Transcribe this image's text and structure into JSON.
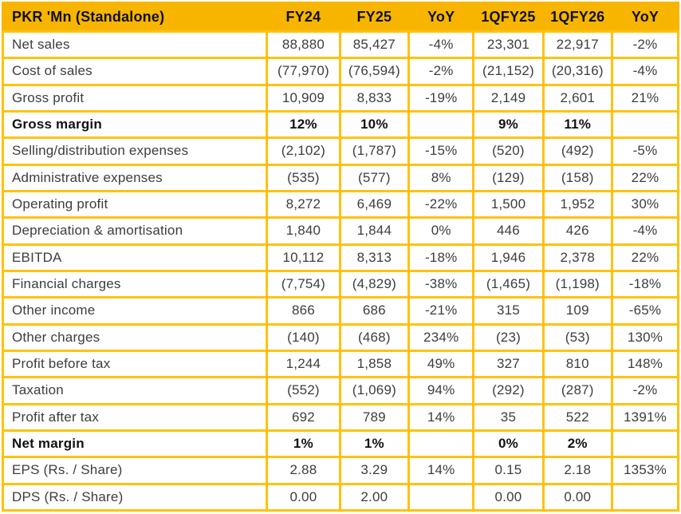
{
  "colors": {
    "header_bg": "#F8B500",
    "border": "#FFC20E",
    "text": "#3D3D3D",
    "header_text": "#101010"
  },
  "table": {
    "title": "PKR 'Mn (Standalone)",
    "columns": [
      "PKR 'Mn (Standalone)",
      "FY24",
      "FY25",
      "YoY",
      "1QFY25",
      "1QFY26",
      "YoY"
    ],
    "rows": [
      {
        "label": "Net sales",
        "bold": false,
        "values": [
          "88,880",
          "85,427",
          "-4%",
          "23,301",
          "22,917",
          "-2%"
        ]
      },
      {
        "label": "Cost of sales",
        "bold": false,
        "values": [
          "(77,970)",
          "(76,594)",
          "-2%",
          "(21,152)",
          "(20,316)",
          "-4%"
        ]
      },
      {
        "label": "Gross profit",
        "bold": false,
        "values": [
          "10,909",
          "8,833",
          "-19%",
          "2,149",
          "2,601",
          "21%"
        ]
      },
      {
        "label": "Gross margin",
        "bold": true,
        "values": [
          "12%",
          "10%",
          "",
          "9%",
          "11%",
          ""
        ]
      },
      {
        "label": "Selling/distribution expenses",
        "bold": false,
        "values": [
          "(2,102)",
          "(1,787)",
          "-15%",
          "(520)",
          "(492)",
          "-5%"
        ]
      },
      {
        "label": "Administrative expenses",
        "bold": false,
        "values": [
          "(535)",
          "(577)",
          "8%",
          "(129)",
          "(158)",
          "22%"
        ]
      },
      {
        "label": "Operating profit",
        "bold": false,
        "values": [
          "8,272",
          "6,469",
          "-22%",
          "1,500",
          "1,952",
          "30%"
        ]
      },
      {
        "label": "Depreciation & amortisation",
        "bold": false,
        "values": [
          "1,840",
          "1,844",
          "0%",
          "446",
          "426",
          "-4%"
        ]
      },
      {
        "label": "EBITDA",
        "bold": false,
        "values": [
          "10,112",
          "8,313",
          "-18%",
          "1,946",
          "2,378",
          "22%"
        ]
      },
      {
        "label": "Financial charges",
        "bold": false,
        "values": [
          "(7,754)",
          "(4,829)",
          "-38%",
          "(1,465)",
          "(1,198)",
          "-18%"
        ]
      },
      {
        "label": "Other income",
        "bold": false,
        "values": [
          "866",
          "686",
          "-21%",
          "315",
          "109",
          "-65%"
        ]
      },
      {
        "label": "Other charges",
        "bold": false,
        "values": [
          "(140)",
          "(468)",
          "234%",
          "(23)",
          "(53)",
          "130%"
        ]
      },
      {
        "label": "Profit before tax",
        "bold": false,
        "values": [
          "1,244",
          "1,858",
          "49%",
          "327",
          "810",
          "148%"
        ]
      },
      {
        "label": "Taxation",
        "bold": false,
        "values": [
          "(552)",
          "(1,069)",
          "94%",
          "(292)",
          "(287)",
          "-2%"
        ]
      },
      {
        "label": "Profit after tax",
        "bold": false,
        "values": [
          "692",
          "789",
          "14%",
          "35",
          "522",
          "1391%"
        ]
      },
      {
        "label": "Net margin",
        "bold": true,
        "values": [
          "1%",
          "1%",
          "",
          "0%",
          "2%",
          ""
        ]
      },
      {
        "label": "EPS (Rs. / Share)",
        "bold": false,
        "values": [
          "2.88",
          "3.29",
          "14%",
          "0.15",
          "2.18",
          "1353%"
        ]
      },
      {
        "label": "DPS (Rs. / Share)",
        "bold": false,
        "values": [
          "0.00",
          "2.00",
          "",
          "0.00",
          "0.00",
          ""
        ]
      }
    ]
  }
}
